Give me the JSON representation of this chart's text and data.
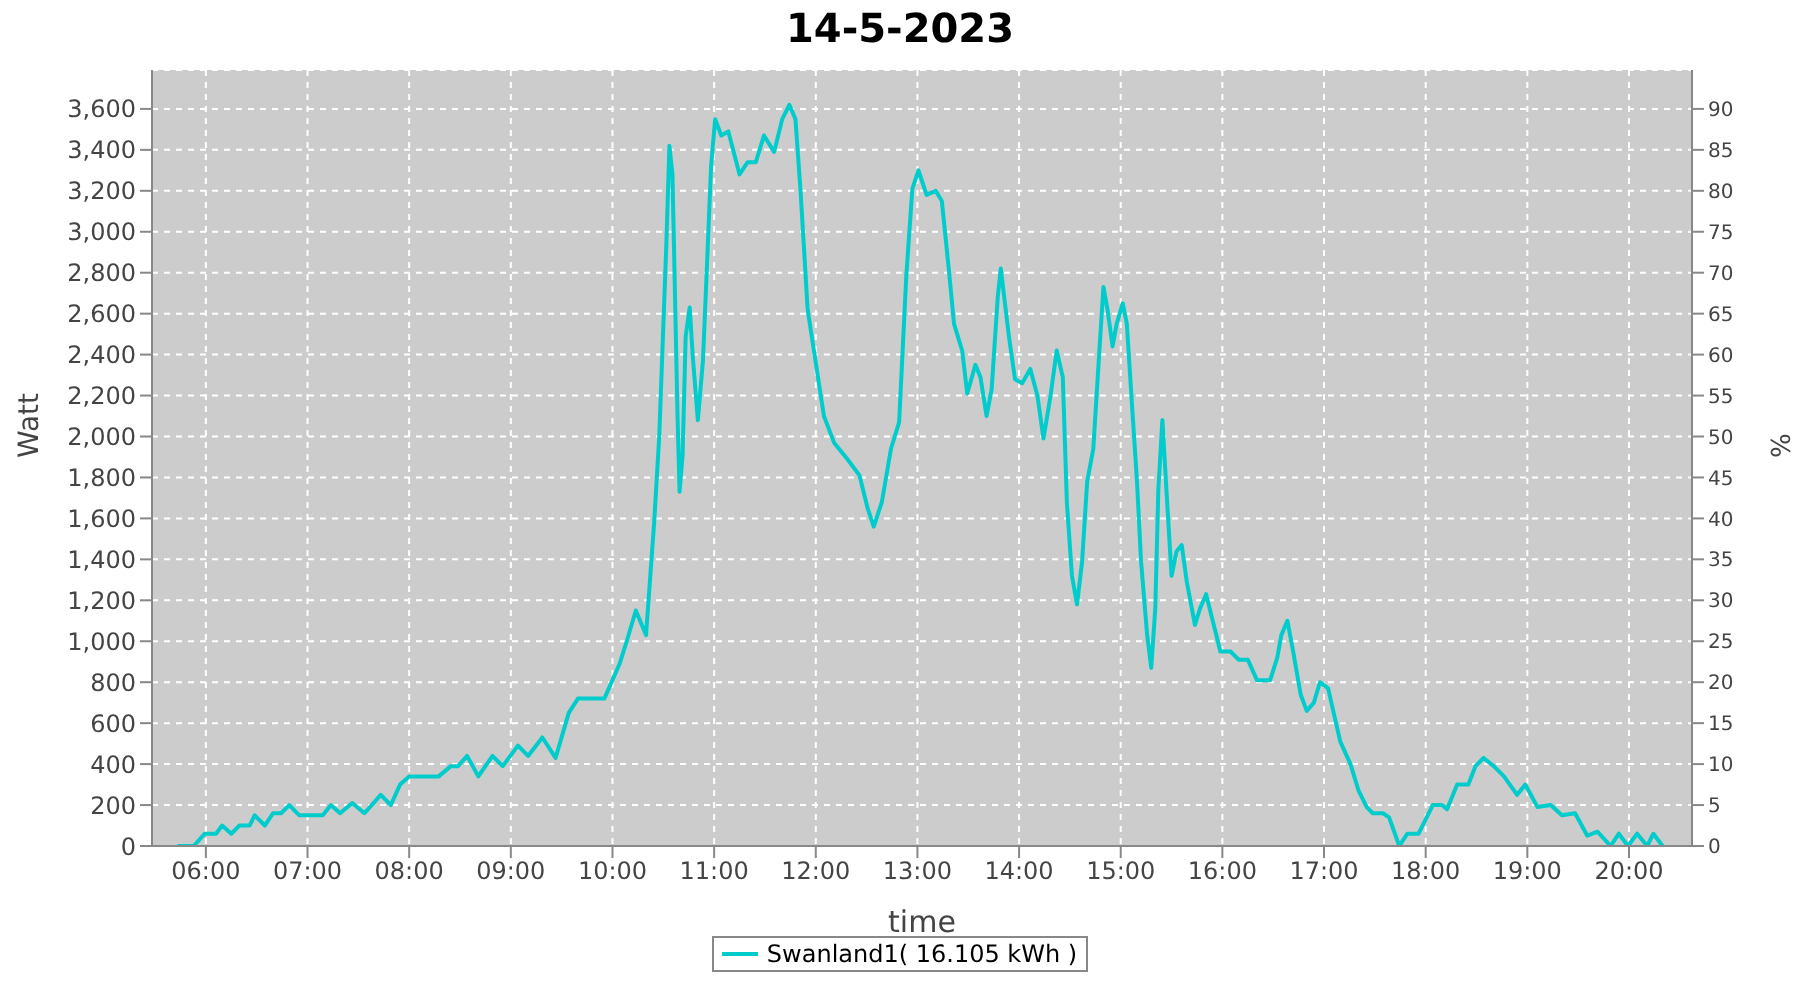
{
  "chart_data": {
    "type": "line",
    "title": "14-5-2023",
    "xlabel": "time",
    "ylabel": "Watt",
    "y2label": "%",
    "xlim": [
      5.47,
      20.62
    ],
    "xticks": [
      {
        "value": 6,
        "label": "06:00"
      },
      {
        "value": 7,
        "label": "07:00"
      },
      {
        "value": 8,
        "label": "08:00"
      },
      {
        "value": 9,
        "label": "09:00"
      },
      {
        "value": 10,
        "label": "10:00"
      },
      {
        "value": 11,
        "label": "11:00"
      },
      {
        "value": 12,
        "label": "12:00"
      },
      {
        "value": 13,
        "label": "13:00"
      },
      {
        "value": 14,
        "label": "14:00"
      },
      {
        "value": 15,
        "label": "15:00"
      },
      {
        "value": 16,
        "label": "16:00"
      },
      {
        "value": 17,
        "label": "17:00"
      },
      {
        "value": 18,
        "label": "18:00"
      },
      {
        "value": 19,
        "label": "19:00"
      },
      {
        "value": 20,
        "label": "20:00"
      }
    ],
    "ylim": [
      0,
      3790
    ],
    "yticks": [
      {
        "value": 0,
        "label": "0"
      },
      {
        "value": 200,
        "label": "200"
      },
      {
        "value": 400,
        "label": "400"
      },
      {
        "value": 600,
        "label": "600"
      },
      {
        "value": 800,
        "label": "800"
      },
      {
        "value": 1000,
        "label": "1,000"
      },
      {
        "value": 1200,
        "label": "1,200"
      },
      {
        "value": 1400,
        "label": "1,400"
      },
      {
        "value": 1600,
        "label": "1,600"
      },
      {
        "value": 1800,
        "label": "1,800"
      },
      {
        "value": 2000,
        "label": "2,000"
      },
      {
        "value": 2200,
        "label": "2,200"
      },
      {
        "value": 2400,
        "label": "2,400"
      },
      {
        "value": 2600,
        "label": "2,600"
      },
      {
        "value": 2800,
        "label": "2,800"
      },
      {
        "value": 3000,
        "label": "3,000"
      },
      {
        "value": 3200,
        "label": "3,200"
      },
      {
        "value": 3400,
        "label": "3,400"
      },
      {
        "value": 3600,
        "label": "3,600"
      }
    ],
    "y2lim": [
      0,
      94.75
    ],
    "y2ticks": [
      0,
      5,
      10,
      15,
      20,
      25,
      30,
      35,
      40,
      45,
      50,
      55,
      60,
      65,
      70,
      75,
      80,
      85,
      90
    ],
    "grid": true,
    "legend": "bottom",
    "marker": "none",
    "line_style": "solid",
    "series": [
      {
        "name": "Swanland1( 16.105 kWh )",
        "color": "#00cccc",
        "x": [
          5.72,
          5.88,
          5.99,
          6.1,
          6.16,
          6.25,
          6.33,
          6.43,
          6.48,
          6.58,
          6.66,
          6.74,
          6.82,
          6.92,
          7.15,
          7.23,
          7.32,
          7.44,
          7.56,
          7.72,
          7.82,
          7.91,
          8.0,
          8.29,
          8.41,
          8.48,
          8.57,
          8.68,
          8.82,
          8.92,
          9.07,
          9.17,
          9.31,
          9.44,
          9.57,
          9.66,
          9.92,
          10.07,
          10.14,
          10.23,
          10.33,
          10.41,
          10.46,
          10.53,
          10.56,
          10.59,
          10.64,
          10.66,
          10.69,
          10.72,
          10.76,
          10.79,
          10.84,
          10.89,
          10.93,
          10.97,
          11.01,
          11.07,
          11.14,
          11.25,
          11.33,
          11.41,
          11.49,
          11.59,
          11.67,
          11.74,
          11.8,
          11.85,
          11.92,
          12.0,
          12.08,
          12.18,
          12.31,
          12.43,
          12.51,
          12.57,
          12.65,
          12.74,
          12.82,
          12.89,
          12.95,
          13.01,
          13.09,
          13.18,
          13.24,
          13.31,
          13.36,
          13.44,
          13.49,
          13.57,
          13.62,
          13.68,
          13.73,
          13.79,
          13.82,
          13.9,
          13.96,
          14.03,
          14.11,
          14.18,
          14.24,
          14.31,
          14.37,
          14.43,
          14.47,
          14.52,
          14.57,
          14.62,
          14.67,
          14.73,
          14.79,
          14.83,
          14.87,
          14.92,
          14.96,
          15.02,
          15.06,
          15.11,
          15.16,
          15.2,
          15.26,
          15.3,
          15.34,
          15.37,
          15.41,
          15.46,
          15.5,
          15.55,
          15.6,
          15.65,
          15.73,
          15.78,
          15.84,
          15.9,
          15.98,
          16.08,
          16.16,
          16.25,
          16.34,
          16.47,
          16.54,
          16.58,
          16.64,
          16.7,
          16.77,
          16.83,
          16.9,
          16.96,
          17.04,
          17.16,
          17.26,
          17.34,
          17.42,
          17.48,
          17.58,
          17.64,
          17.74,
          17.82,
          17.93,
          18.07,
          18.16,
          18.21,
          18.31,
          18.42,
          18.49,
          18.57,
          18.67,
          18.77,
          18.9,
          18.98,
          19.1,
          19.23,
          19.34,
          19.47,
          19.59,
          19.69,
          19.82,
          19.9,
          19.99,
          20.08,
          20.18,
          20.24,
          20.33
        ],
        "values": [
          0,
          0,
          60,
          60,
          100,
          60,
          100,
          100,
          150,
          100,
          160,
          160,
          200,
          150,
          150,
          200,
          160,
          210,
          160,
          250,
          200,
          300,
          340,
          340,
          390,
          390,
          440,
          340,
          440,
          390,
          490,
          440,
          530,
          430,
          650,
          720,
          720,
          890,
          1000,
          1150,
          1030,
          1580,
          2000,
          2940,
          3420,
          3280,
          2100,
          1730,
          1910,
          2490,
          2630,
          2390,
          2080,
          2370,
          2840,
          3320,
          3550,
          3470,
          3490,
          3280,
          3340,
          3340,
          3470,
          3390,
          3550,
          3620,
          3550,
          3200,
          2620,
          2360,
          2100,
          1970,
          1890,
          1810,
          1650,
          1560,
          1680,
          1940,
          2070,
          2780,
          3210,
          3300,
          3180,
          3200,
          3150,
          2810,
          2550,
          2420,
          2210,
          2350,
          2290,
          2100,
          2230,
          2680,
          2820,
          2490,
          2280,
          2260,
          2330,
          2200,
          1990,
          2200,
          2420,
          2290,
          1680,
          1320,
          1180,
          1390,
          1780,
          1940,
          2420,
          2730,
          2620,
          2440,
          2550,
          2650,
          2550,
          2160,
          1780,
          1390,
          1030,
          870,
          1160,
          1740,
          2080,
          1650,
          1320,
          1440,
          1470,
          1290,
          1080,
          1160,
          1230,
          1110,
          950,
          950,
          910,
          910,
          810,
          810,
          920,
          1030,
          1100,
          940,
          740,
          660,
          700,
          800,
          770,
          510,
          400,
          270,
          190,
          160,
          160,
          140,
          0,
          60,
          60,
          200,
          200,
          180,
          300,
          300,
          390,
          430,
          390,
          340,
          250,
          300,
          190,
          200,
          150,
          160,
          50,
          70,
          0,
          60,
          0,
          60,
          0,
          60,
          0
        ]
      }
    ]
  }
}
